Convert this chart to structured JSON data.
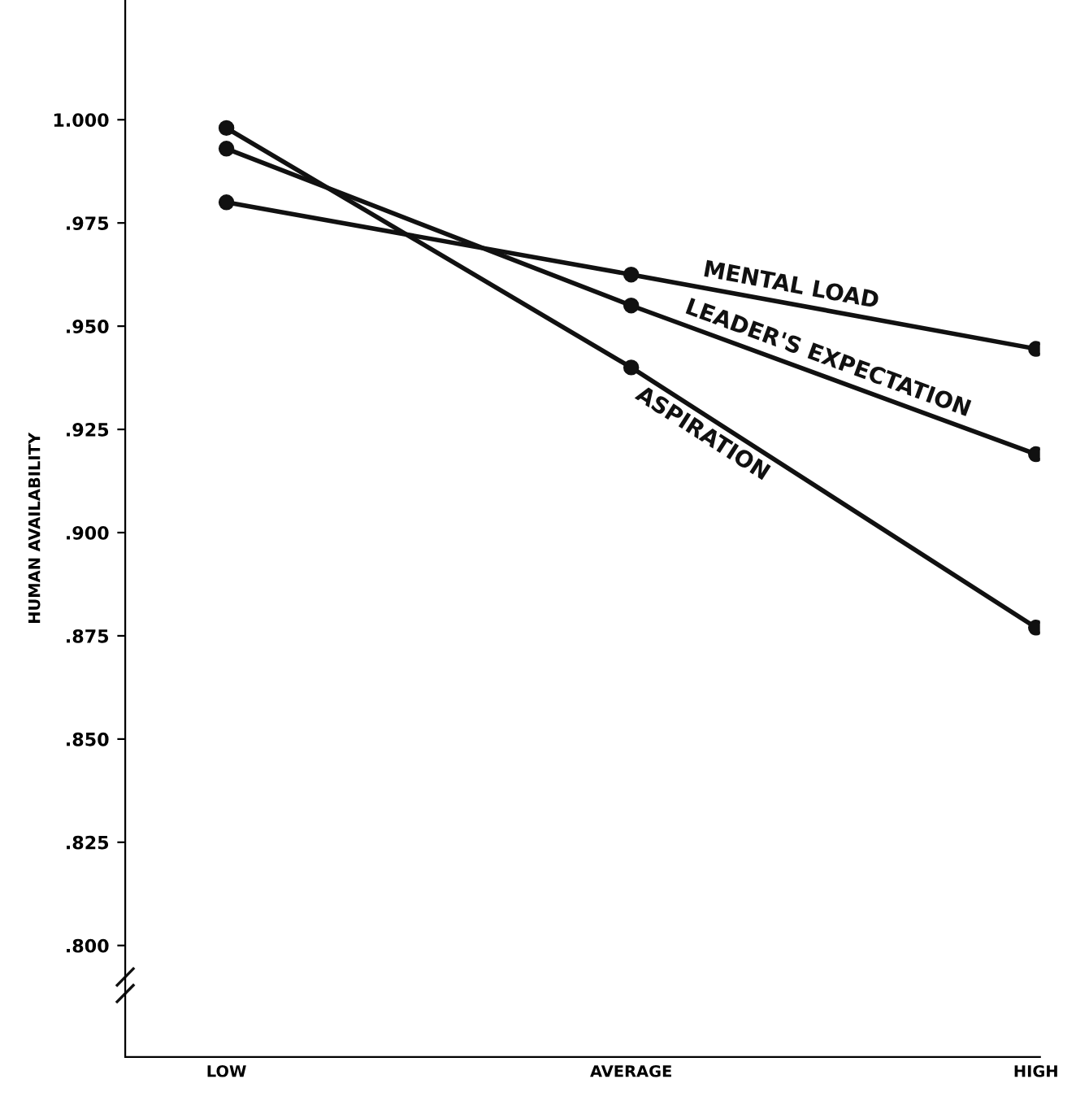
{
  "chart_data": {
    "type": "line",
    "ylabel": "HUMAN AVAILABILITY",
    "categories": [
      "LOW",
      "AVERAGE",
      "HIGH"
    ],
    "series": [
      {
        "name": "MENTAL LOAD",
        "color": "#111111",
        "values": [
          0.98,
          0.9625,
          0.9445
        ]
      },
      {
        "name": "LEADER'S EXPECTATION",
        "color": "#111111",
        "values": [
          0.993,
          0.955,
          0.919
        ]
      },
      {
        "name": "ASPIRATION",
        "color": "#111111",
        "values": [
          0.998,
          0.94,
          0.877
        ]
      }
    ],
    "ylim": [
      0.773,
      1.029
    ],
    "yticks": [
      {
        "value": 0.8,
        "label": ".800"
      },
      {
        "value": 0.825,
        "label": ".825"
      },
      {
        "value": 0.85,
        "label": ".850"
      },
      {
        "value": 0.875,
        "label": ".875"
      },
      {
        "value": 0.9,
        "label": ".900"
      },
      {
        "value": 0.925,
        "label": ".925"
      },
      {
        "value": 0.95,
        "label": ".950"
      },
      {
        "value": 0.975,
        "label": ".975"
      },
      {
        "value": 1.0,
        "label": "1.000"
      }
    ],
    "marker": "circle",
    "line_style": "solid",
    "grid": false,
    "legend": false
  }
}
